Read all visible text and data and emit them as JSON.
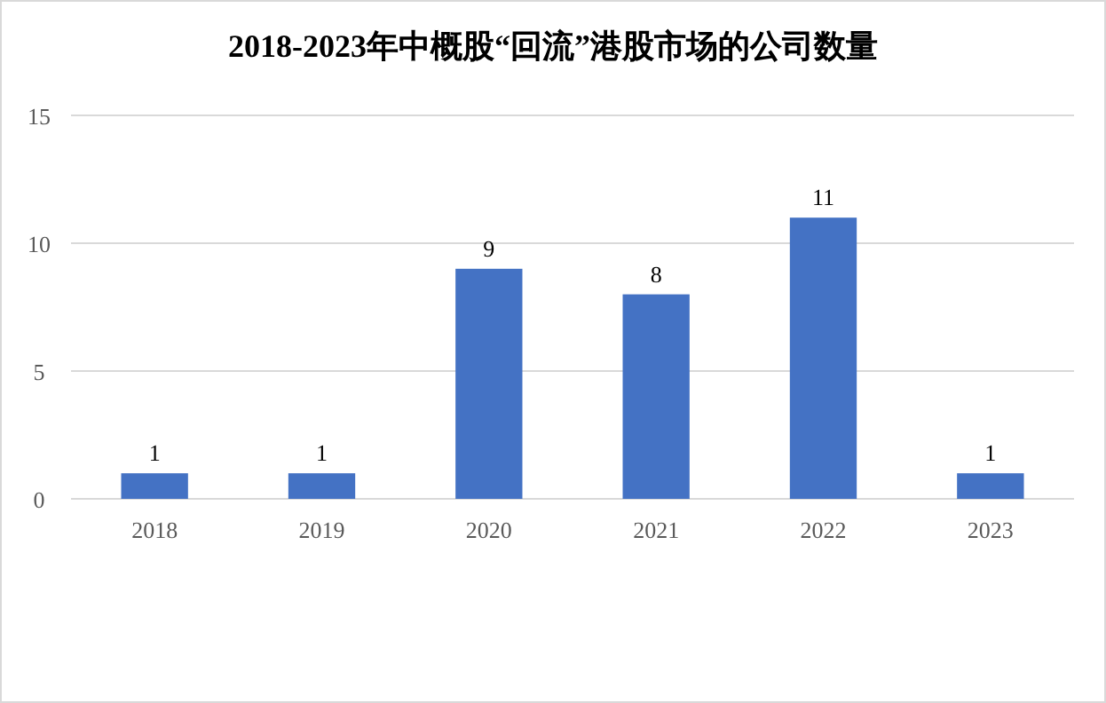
{
  "chart_data": {
    "type": "bar",
    "title": "2018-2023年中概股“回流”港股市场的公司数量",
    "categories": [
      "2018",
      "2019",
      "2020",
      "2021",
      "2022",
      "2023"
    ],
    "values": [
      1,
      1,
      9,
      8,
      11,
      1
    ],
    "color": "#4472c4",
    "ylim": [
      0,
      15
    ],
    "yticks": [
      0,
      5,
      10,
      15
    ],
    "grid": "y",
    "data_labels": true
  }
}
